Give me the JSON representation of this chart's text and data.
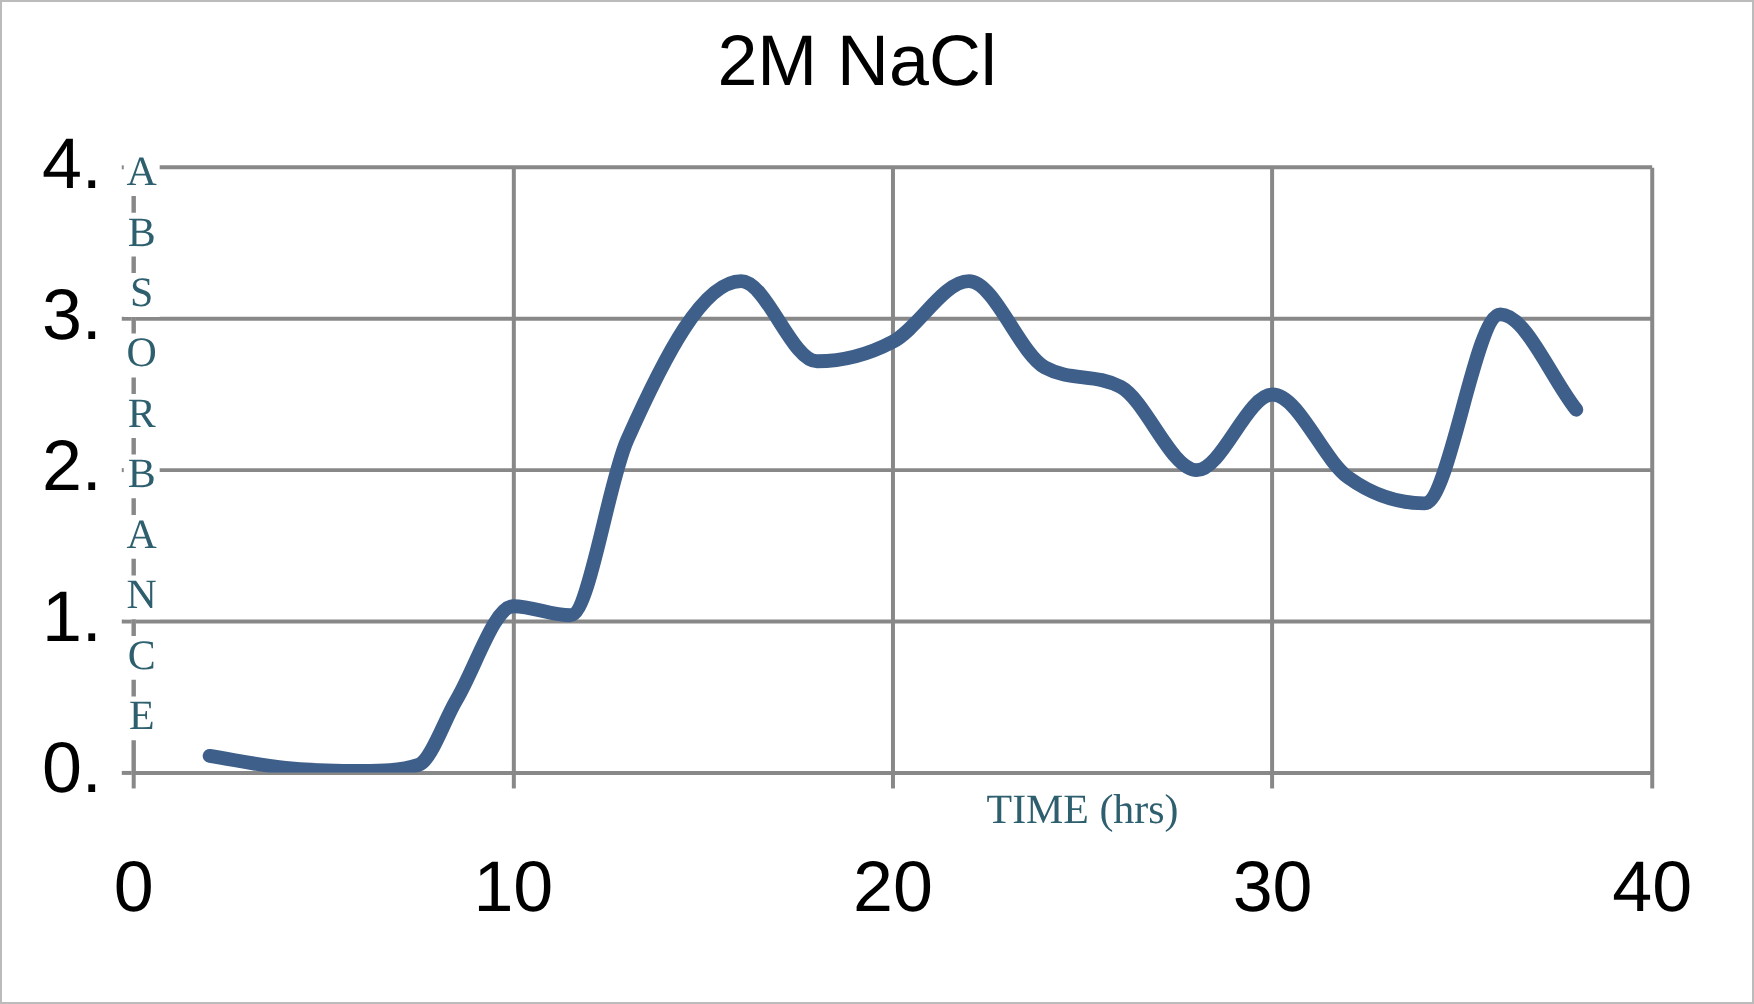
{
  "chart_data": {
    "type": "line",
    "title": "2M NaCl",
    "xlabel": "TIME (hrs)",
    "ylabel": "ABSORBANCE",
    "xlim": [
      0,
      40
    ],
    "xticks": [
      0,
      10,
      20,
      30,
      40
    ],
    "ylim": [
      0,
      4
    ],
    "yticks": [
      {
        "value": 0,
        "label": "0."
      },
      {
        "value": 1,
        "label": "1."
      },
      {
        "value": 2,
        "label": "2."
      },
      {
        "value": 3,
        "label": "3."
      },
      {
        "value": 4,
        "label": "4."
      }
    ],
    "grid": true,
    "legend": false,
    "marker": "none",
    "line_style": "solid",
    "series": [
      {
        "color": "#3e5f8a",
        "x": [
          2,
          4,
          6,
          7.5,
          8.5,
          10,
          11.5,
          13,
          16,
          18,
          20,
          22,
          24,
          26,
          28,
          30,
          32,
          34,
          36,
          38
        ],
        "values": [
          0.11,
          0.03,
          0.01,
          0.05,
          0.48,
          1.1,
          1.04,
          2.2,
          3.25,
          2.72,
          2.85,
          3.25,
          2.68,
          2.55,
          2.0,
          2.5,
          1.95,
          1.78,
          3.03,
          2.4
        ]
      }
    ]
  }
}
